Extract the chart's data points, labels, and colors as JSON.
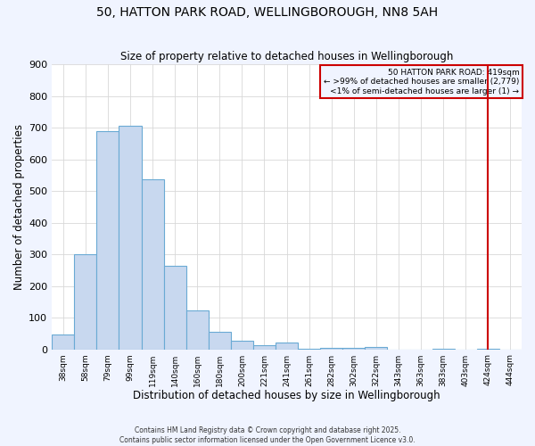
{
  "title": "50, HATTON PARK ROAD, WELLINGBOROUGH, NN8 5AH",
  "subtitle": "Size of property relative to detached houses in Wellingborough",
  "xlabel": "Distribution of detached houses by size in Wellingborough",
  "ylabel": "Number of detached properties",
  "bar_labels": [
    "38sqm",
    "58sqm",
    "79sqm",
    "99sqm",
    "119sqm",
    "140sqm",
    "160sqm",
    "180sqm",
    "200sqm",
    "221sqm",
    "241sqm",
    "261sqm",
    "282sqm",
    "302sqm",
    "322sqm",
    "343sqm",
    "363sqm",
    "383sqm",
    "403sqm",
    "424sqm",
    "444sqm"
  ],
  "bar_heights": [
    46,
    300,
    690,
    706,
    537,
    264,
    122,
    55,
    28,
    14,
    20,
    2,
    4,
    4,
    8,
    0,
    0,
    2,
    0,
    2,
    0
  ],
  "bar_color": "#c8d8ef",
  "bar_edge_color": "#6aaad4",
  "grid_color": "#d8d8d8",
  "bg_color": "#f0f4ff",
  "plot_bg_color": "#ffffff",
  "vline_x_index": 19,
  "vline_color": "#cc0000",
  "legend_text_line1": "50 HATTON PARK ROAD: 419sqm",
  "legend_text_line2": "← >99% of detached houses are smaller (2,779)",
  "legend_text_line3": "<1% of semi-detached houses are larger (1) →",
  "legend_box_color": "#cc0000",
  "footer_line1": "Contains HM Land Registry data © Crown copyright and database right 2025.",
  "footer_line2": "Contains public sector information licensed under the Open Government Licence v3.0.",
  "ylim": [
    0,
    900
  ],
  "yticks": [
    0,
    100,
    200,
    300,
    400,
    500,
    600,
    700,
    800,
    900
  ]
}
